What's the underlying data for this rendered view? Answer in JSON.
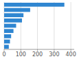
{
  "chart_data": {
    "type": "bar",
    "orientation": "horizontal",
    "values": [
      361.0,
      156.0,
      116.0,
      107.0,
      72.0,
      56.0,
      42.0,
      35.0,
      28.0
    ],
    "color": "#2f86d1",
    "xlim": [
      0,
      420
    ],
    "xticks": [
      0,
      100,
      200,
      300,
      400
    ],
    "grid": true,
    "tick_labels": "x"
  }
}
